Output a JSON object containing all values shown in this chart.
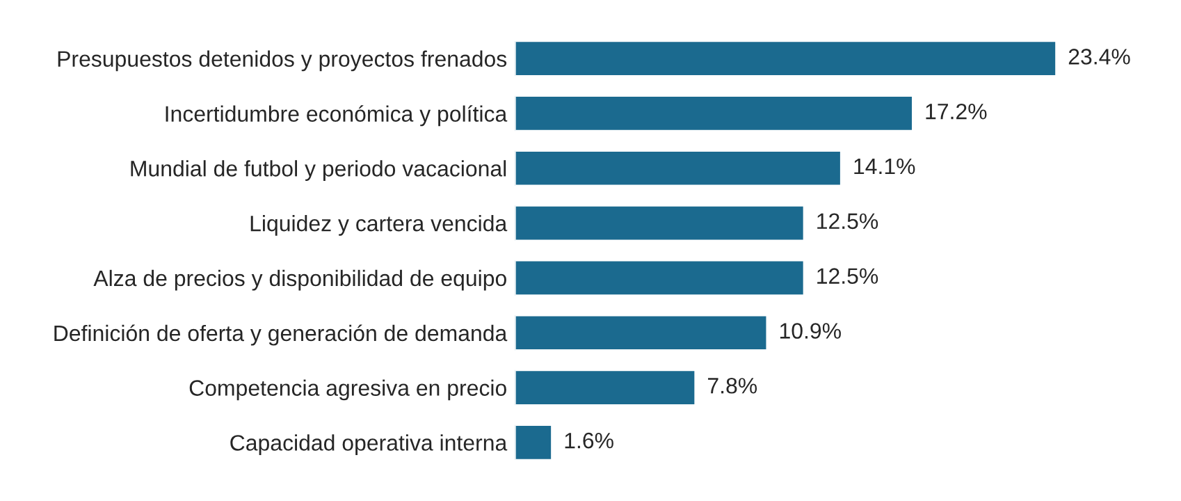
{
  "chart_data": {
    "type": "bar",
    "orientation": "horizontal",
    "grid": false,
    "color": "#1b6a8f",
    "value_labels": [
      "23.4%",
      "17.2%",
      "14.1%",
      "12.5%",
      "12.5%",
      "10.9%",
      "7.8%",
      "1.6%"
    ],
    "categories": [
      "Presupuestos detenidos y proyectos frenados",
      "Incertidumbre económica y política",
      "Mundial de futbol y periodo vacacional",
      "Liquidez y cartera vencida",
      "Alza de precios y disponibilidad de equipo",
      "Definición de oferta y generación de demanda",
      "Competencia agresiva en precio",
      "Capacidad operativa interna"
    ],
    "values": [
      23.4,
      17.2,
      14.1,
      12.5,
      12.5,
      10.9,
      7.8,
      1.6
    ]
  }
}
